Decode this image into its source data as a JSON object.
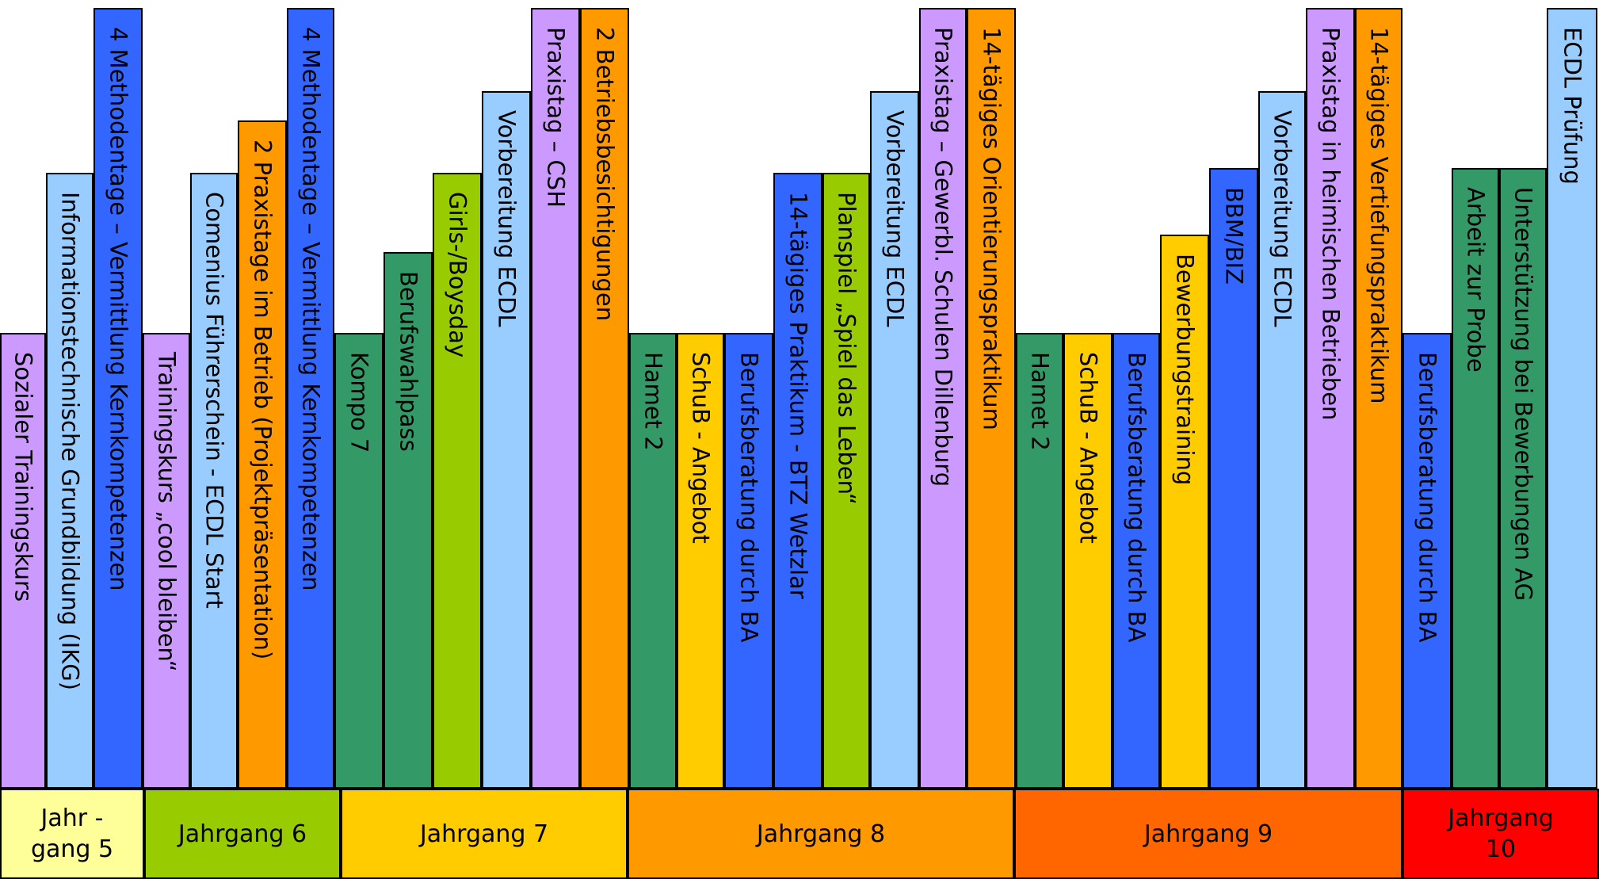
{
  "colors": {
    "lavender": "#CC99FF",
    "light_blue": "#99CCFF",
    "blue": "#3366FF",
    "orange": "#FF9900",
    "dark_green": "#339966",
    "lime": "#99CC00",
    "yellow": "#FFCC00",
    "grade5": "#FFFF99",
    "grade6": "#99CC00",
    "grade7": "#FFCC00",
    "grade8": "#FF9900",
    "grade9": "#FF6600",
    "grade10": "#FF0000"
  },
  "books": [
    {
      "label": "Sozialer Trainingskurs",
      "color": "lavender",
      "grade": "5"
    },
    {
      "label": "Informationstechnische Grundbildung (IKG)",
      "color": "light_blue",
      "grade": "5"
    },
    {
      "label": "4 Methodentage – Vermittlung Kernkompetenzen",
      "color": "blue",
      "grade": "5"
    },
    {
      "label": "Trainingskurs „cool bleiben“",
      "color": "lavender",
      "grade": "6"
    },
    {
      "label": "Comenius Führerschein - ECDL Start",
      "color": "light_blue",
      "grade": "6"
    },
    {
      "label": "2 Praxistage im Betrieb (Projektpräsentation)",
      "color": "orange",
      "grade": "6"
    },
    {
      "label": "4 Methodentage – Vermittlung Kernkompetenzen",
      "color": "blue",
      "grade": "6"
    },
    {
      "label": "Kompo 7",
      "color": "dark_green",
      "grade": "7"
    },
    {
      "label": "Berufswahlpass",
      "color": "dark_green",
      "grade": "7"
    },
    {
      "label": "Girls-/Boysday",
      "color": "lime",
      "grade": "7"
    },
    {
      "label": "Vorbereitung ECDL",
      "color": "light_blue",
      "grade": "7"
    },
    {
      "label": "Praxistag – CSH",
      "color": "lavender",
      "grade": "7"
    },
    {
      "label": "2 Betriebsbesichtigungen",
      "color": "orange",
      "grade": "7"
    },
    {
      "label": "Hamet 2",
      "color": "dark_green",
      "grade": "8"
    },
    {
      "label": "SchuB - Angebot",
      "color": "yellow",
      "grade": "8"
    },
    {
      "label": "Berufsberatung durch BA",
      "color": "blue",
      "grade": "8"
    },
    {
      "label": "14-tägiges Praktikum - BTZ Wetzlar",
      "color": "blue",
      "grade": "8"
    },
    {
      "label": "Planspiel „Spiel das Leben“",
      "color": "lime",
      "grade": "8"
    },
    {
      "label": "Vorbereitung ECDL",
      "color": "light_blue",
      "grade": "8"
    },
    {
      "label": "Praxistag – Gewerbl. Schulen Dillenburg",
      "color": "lavender",
      "grade": "8"
    },
    {
      "label": "14-tägiges Orientierungspraktikum",
      "color": "orange",
      "grade": "8"
    },
    {
      "label": "Hamet 2",
      "color": "dark_green",
      "grade": "9"
    },
    {
      "label": "SchuB - Angebot",
      "color": "yellow",
      "grade": "9"
    },
    {
      "label": "Berufsberatung durch BA",
      "color": "blue",
      "grade": "9"
    },
    {
      "label": "Bewerbungstraining",
      "color": "yellow",
      "grade": "9"
    },
    {
      "label": "BBM/BIZ",
      "color": "blue",
      "grade": "9"
    },
    {
      "label": "Vorbereitung ECDL",
      "color": "light_blue",
      "grade": "9"
    },
    {
      "label": "Praxistag in heimischen Betrieben",
      "color": "lavender",
      "grade": "9"
    },
    {
      "label": "14-tägiges Vertiefungspraktikum",
      "color": "orange",
      "grade": "9"
    },
    {
      "label": "Berufsberatung durch BA",
      "color": "blue",
      "grade": "10"
    },
    {
      "label": "Arbeit zur Probe",
      "color": "dark_green",
      "grade": "10"
    },
    {
      "label": "Unterstützung bei Bewerbungen AG",
      "color": "dark_green",
      "grade": "10"
    },
    {
      "label": "ECDL Prüfung",
      "color": "light_blue",
      "grade": "10"
    }
  ],
  "grades": [
    {
      "id": "5",
      "label": "Jahr -\ngang 5",
      "color": "grade5"
    },
    {
      "id": "6",
      "label": "Jahrgang 6",
      "color": "grade6"
    },
    {
      "id": "7",
      "label": "Jahrgang 7",
      "color": "grade7"
    },
    {
      "id": "8",
      "label": "Jahrgang 8",
      "color": "grade8"
    },
    {
      "id": "9",
      "label": "Jahrgang 9",
      "color": "grade9"
    },
    {
      "id": "10",
      "label": "Jahrgang\n10",
      "color": "grade10"
    }
  ]
}
